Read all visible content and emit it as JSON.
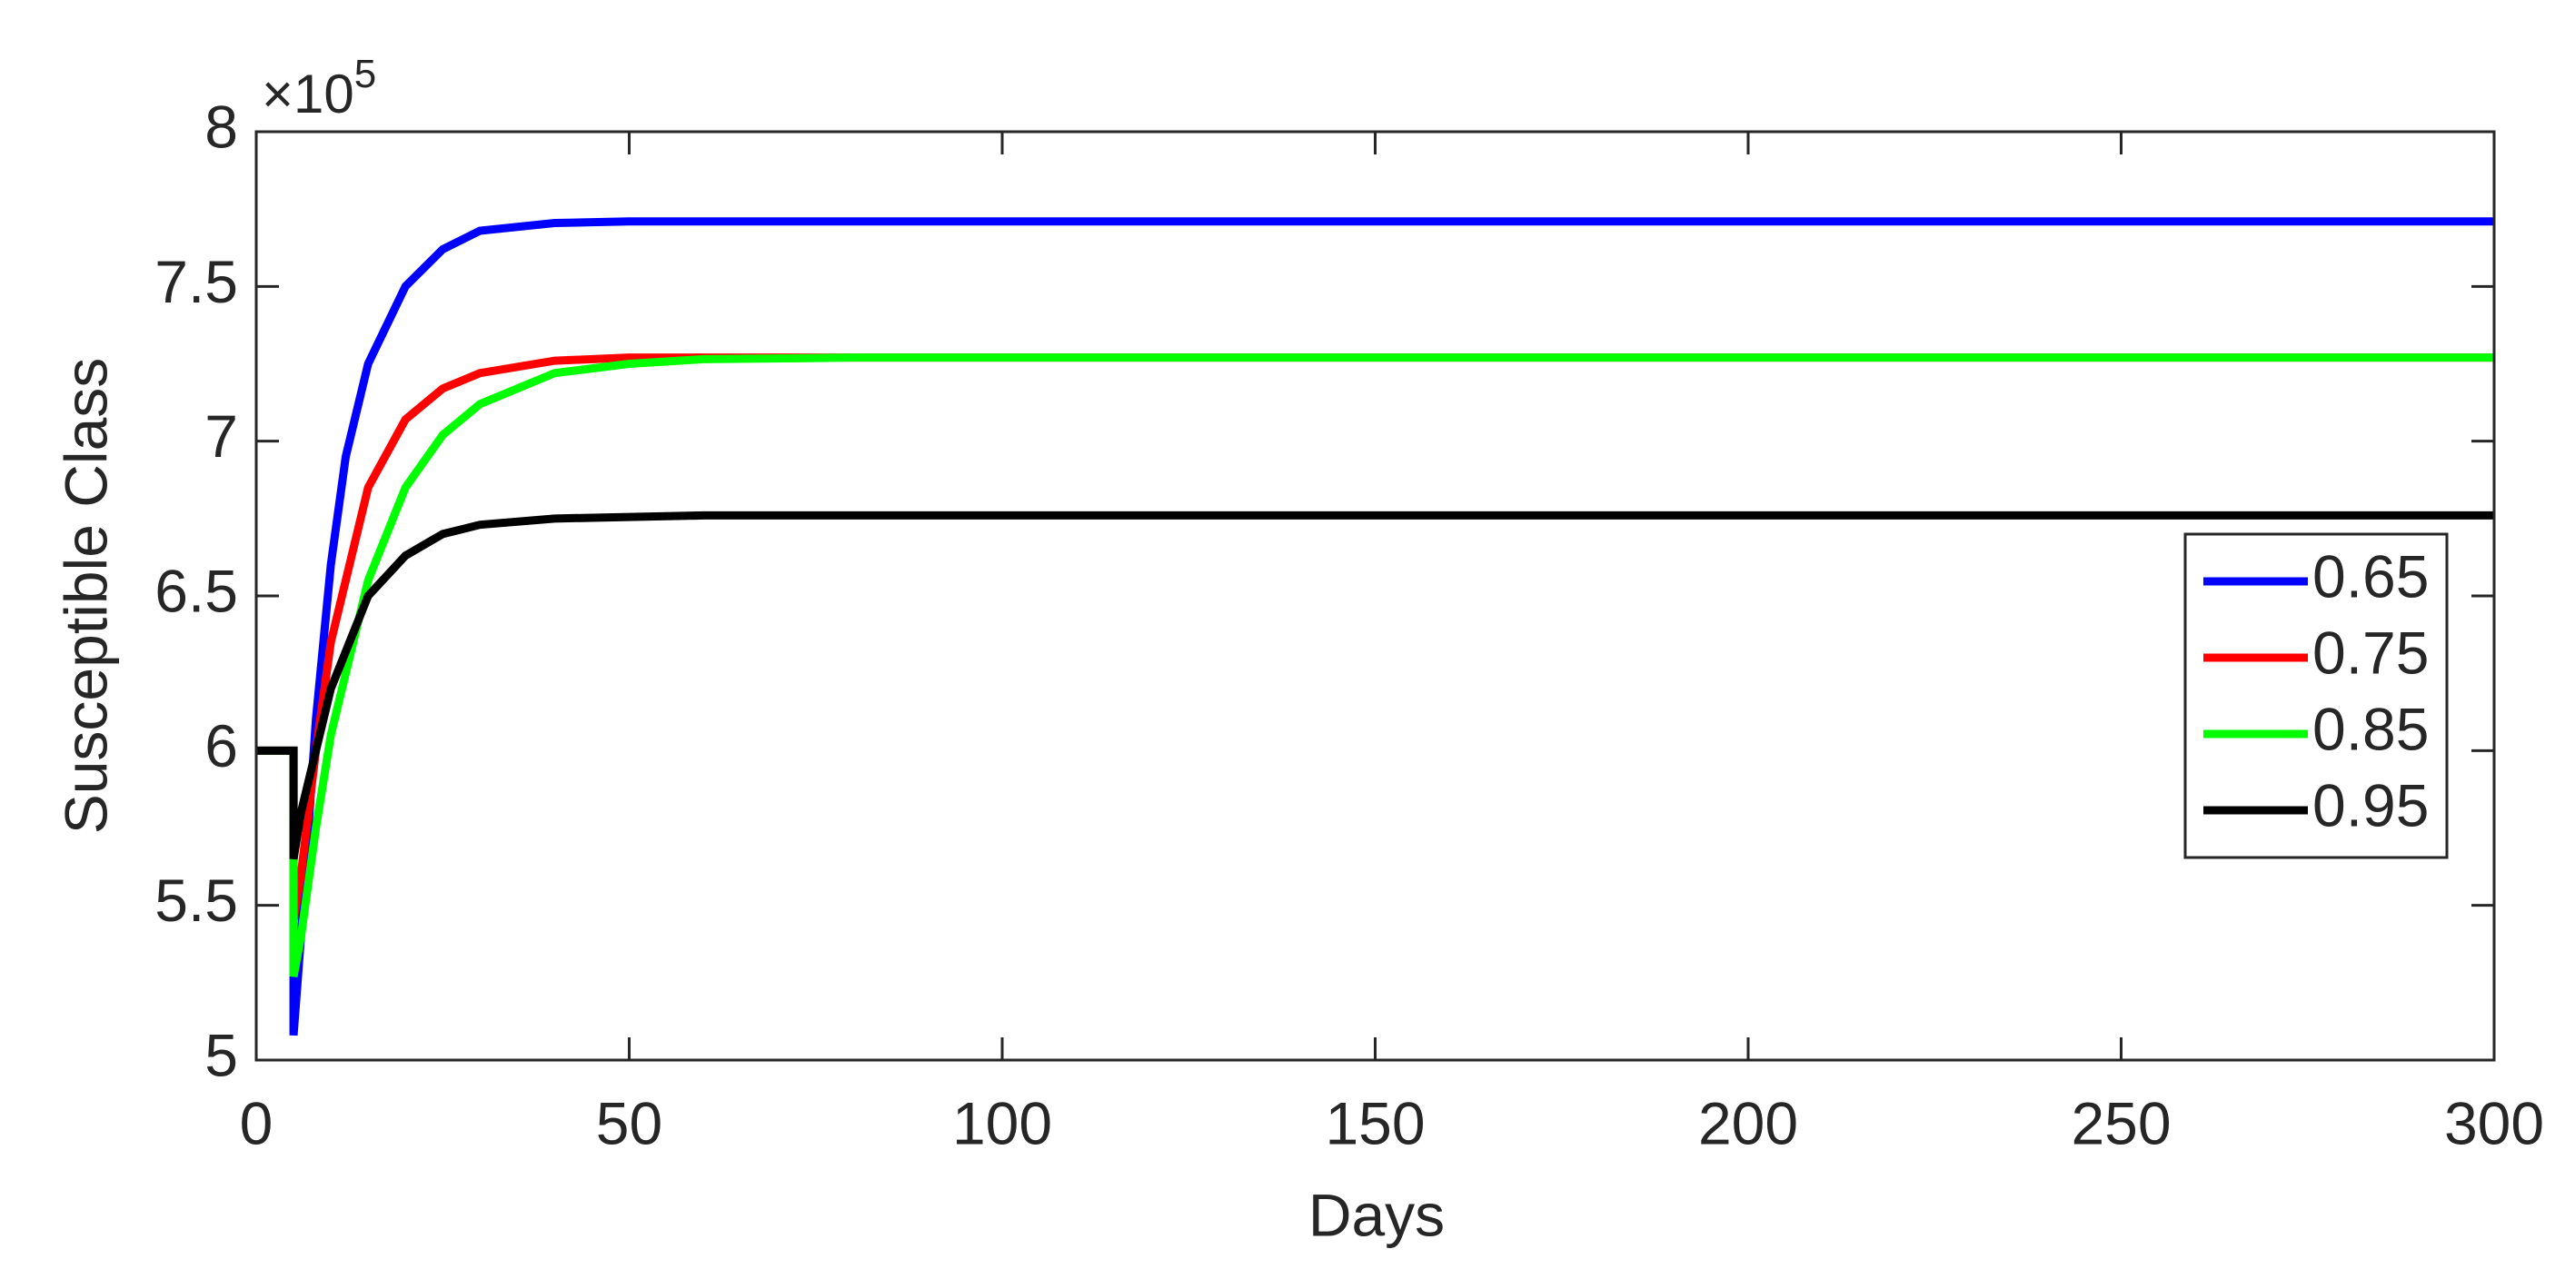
{
  "chart_data": {
    "type": "line",
    "x_label": "Days",
    "y_label": "Susceptible Class",
    "y_multiplier_base": "×10",
    "y_multiplier_exponent": "5",
    "x": [
      0,
      5,
      5,
      6,
      8,
      10,
      12,
      15,
      20,
      25,
      30,
      40,
      50,
      60,
      80,
      100,
      150,
      200,
      300
    ],
    "series": [
      {
        "name": "0.65",
        "color": "#0000ff",
        "values": [
          6,
          6,
          5.08,
          5.4,
          6.1,
          6.6,
          6.95,
          7.25,
          7.5,
          7.62,
          7.68,
          7.705,
          7.71,
          7.71,
          7.71,
          7.71,
          7.71,
          7.71,
          7.71
        ]
      },
      {
        "name": "0.75",
        "color": "#ff0000",
        "values": [
          6,
          6,
          5.45,
          5.6,
          6.0,
          6.35,
          6.55,
          6.85,
          7.07,
          7.17,
          7.22,
          7.26,
          7.27,
          7.27,
          7.27,
          7.27,
          7.27,
          7.27,
          7.27
        ]
      },
      {
        "name": "0.85",
        "color": "#00ff00",
        "values": [
          6,
          6,
          5.27,
          5.4,
          5.75,
          6.05,
          6.25,
          6.55,
          6.85,
          7.02,
          7.12,
          7.22,
          7.25,
          7.265,
          7.27,
          7.27,
          7.27,
          7.27,
          7.27
        ]
      },
      {
        "name": "0.95",
        "color": "#000000",
        "values": [
          6,
          6,
          5.65,
          5.8,
          6.0,
          6.2,
          6.32,
          6.5,
          6.63,
          6.7,
          6.73,
          6.75,
          6.755,
          6.76,
          6.76,
          6.76,
          6.76,
          6.76,
          6.76
        ]
      }
    ],
    "xlim": [
      0,
      300
    ],
    "xticks": [
      0,
      50,
      100,
      150,
      200,
      250,
      300
    ],
    "ylim": [
      5,
      8
    ],
    "yticks": [
      5,
      5.5,
      6,
      6.5,
      7,
      7.5,
      8
    ],
    "legend": "east"
  }
}
